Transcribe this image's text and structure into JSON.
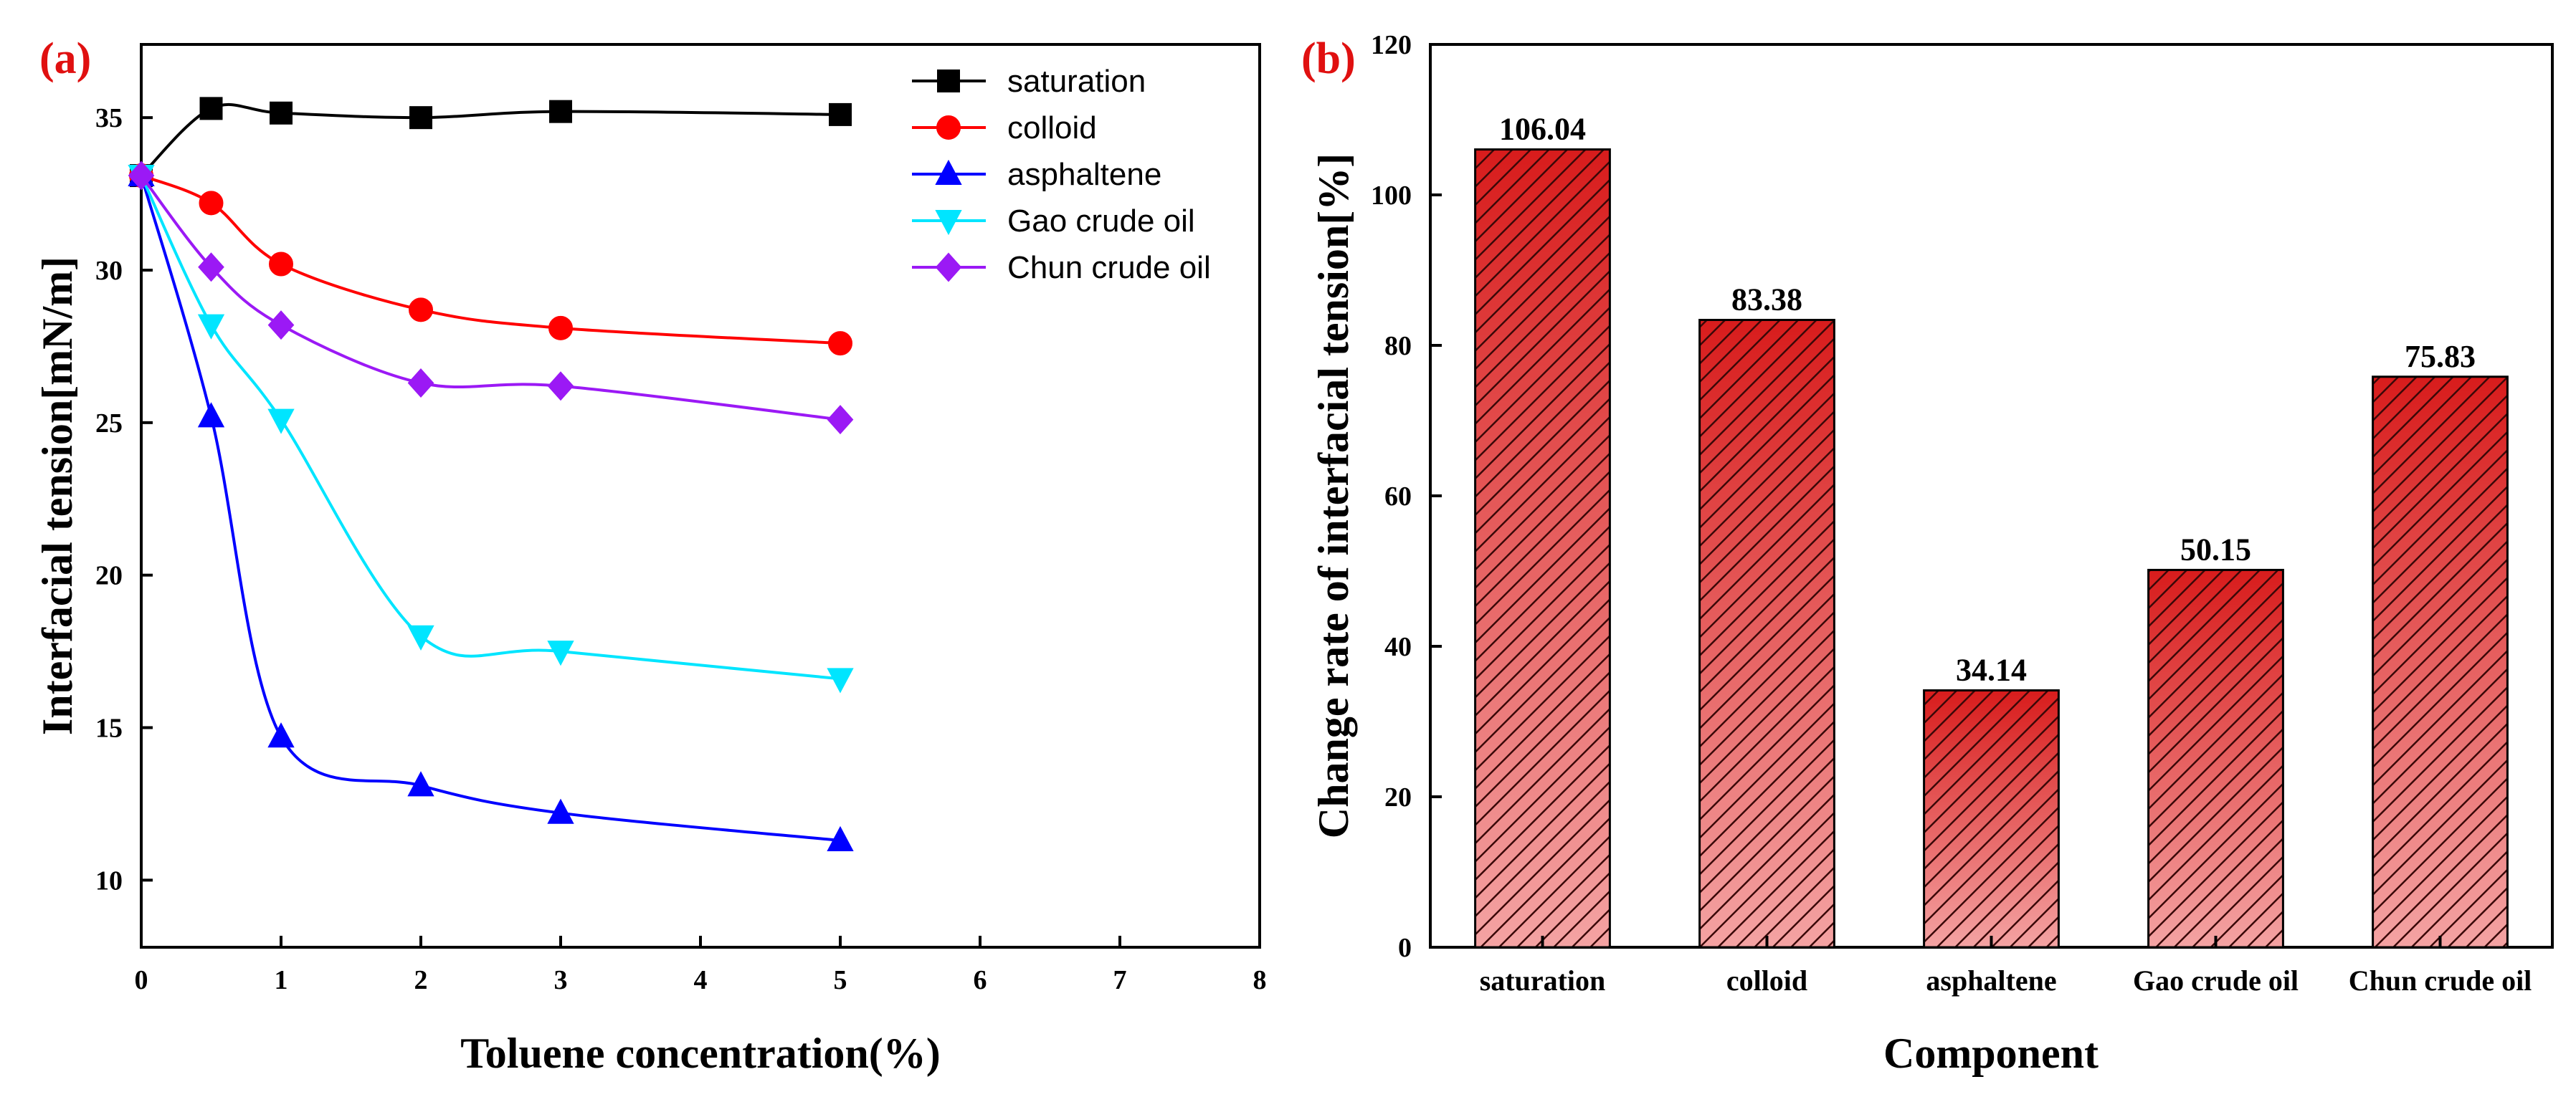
{
  "colors": {
    "panel_label": "#e01010",
    "bar_fill_top": "#d81c1c",
    "bar_fill_bottom": "#f4a3a3",
    "hatch": "#3a0808"
  },
  "chart_data": [
    {
      "type": "line",
      "panel_label": "(a)",
      "title": "",
      "xlabel": "Toluene concentration(%)",
      "ylabel": "Interfacial tension[mN/m]",
      "xlim": [
        0,
        8
      ],
      "ylim": [
        7.8,
        37.4
      ],
      "xticks": [
        0,
        1,
        2,
        3,
        4,
        5,
        6,
        7,
        8
      ],
      "yticks": [
        10,
        15,
        20,
        25,
        30,
        35
      ],
      "grid": false,
      "legend_position": "top-right",
      "x": [
        0,
        0.5,
        1,
        2,
        3,
        5
      ],
      "series": [
        {
          "name": "saturation",
          "color": "#000000",
          "marker": "square",
          "values": [
            33.1,
            35.3,
            35.15,
            35.0,
            35.2,
            35.1
          ]
        },
        {
          "name": "colloid",
          "color": "#ff0000",
          "marker": "circle",
          "values": [
            33.1,
            32.2,
            30.2,
            28.7,
            28.1,
            27.6
          ]
        },
        {
          "name": "asphaltene",
          "color": "#0000ff",
          "marker": "triangle-up",
          "values": [
            33.1,
            25.2,
            14.7,
            13.1,
            12.2,
            11.3
          ]
        },
        {
          "name": "Gao crude oil",
          "color": "#00e5ff",
          "marker": "triangle-down",
          "values": [
            33.1,
            28.2,
            25.1,
            18.0,
            17.5,
            16.6
          ]
        },
        {
          "name": "Chun crude oil",
          "color": "#9b19f5",
          "marker": "diamond",
          "values": [
            33.1,
            30.1,
            28.2,
            26.3,
            26.2,
            25.1
          ]
        }
      ]
    },
    {
      "type": "bar",
      "panel_label": "(b)",
      "title": "",
      "xlabel": "Component",
      "ylabel": "Change rate of interfacial tension[%]",
      "ylim": [
        0,
        120
      ],
      "yticks": [
        0,
        20,
        40,
        60,
        80,
        100,
        120
      ],
      "grid": false,
      "categories": [
        "saturation",
        "colloid",
        "asphaltene",
        "Gao crude oil",
        "Chun crude oil"
      ],
      "values": [
        106.04,
        83.38,
        34.14,
        50.15,
        75.83
      ],
      "value_labels": [
        "106.04",
        "83.38",
        "34.14",
        "50.15",
        "75.83"
      ]
    }
  ]
}
